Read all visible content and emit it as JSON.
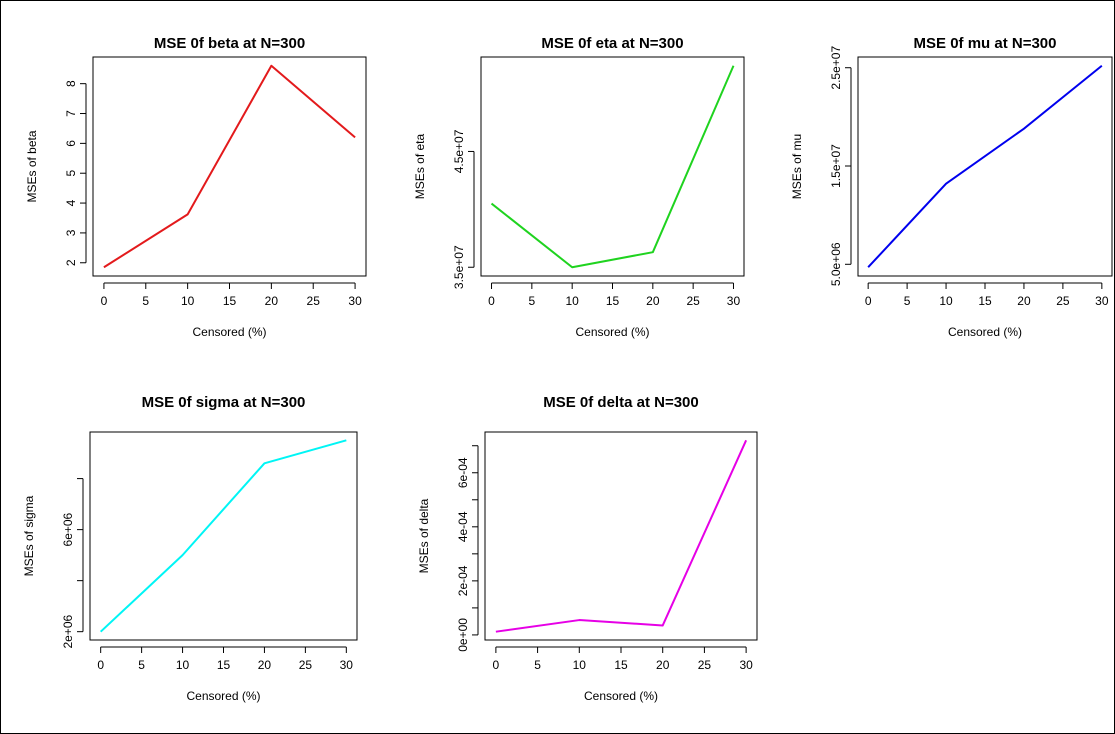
{
  "chart_data": [
    {
      "type": "line",
      "title": "MSE 0f beta at N=300",
      "xlabel": "Censored (%)",
      "ylabel": "MSEs of beta",
      "x": [
        0,
        10,
        20,
        30
      ],
      "series": [
        {
          "values": [
            1.85,
            3.62,
            8.6,
            6.2
          ],
          "color": "#e31a1c"
        }
      ],
      "xlim": [
        0,
        30
      ],
      "ylim": [
        1.85,
        8.6
      ],
      "xticks": [
        0,
        5,
        10,
        15,
        20,
        25,
        30
      ],
      "xtick_labels": [
        "0",
        "5",
        "10",
        "15",
        "20",
        "25",
        "30"
      ],
      "yticks": [
        2,
        3,
        4,
        5,
        6,
        7,
        8
      ],
      "ytick_labels": [
        "2",
        "3",
        "4",
        "5",
        "6",
        "7",
        "8"
      ],
      "grid": false
    },
    {
      "type": "line",
      "title": "MSE 0f eta at N=300",
      "xlabel": "Censored (%)",
      "ylabel": "MSEs of eta",
      "x": [
        0,
        10,
        20,
        30
      ],
      "series": [
        {
          "values": [
            40500000,
            35000000,
            36300000,
            52400000
          ],
          "color": "#1fd31f"
        }
      ],
      "xlim": [
        0,
        30
      ],
      "ylim": [
        35000000,
        52400000
      ],
      "xticks": [
        0,
        5,
        10,
        15,
        20,
        25,
        30
      ],
      "xtick_labels": [
        "0",
        "5",
        "10",
        "15",
        "20",
        "25",
        "30"
      ],
      "yticks": [
        35000000,
        45000000
      ],
      "ytick_labels": [
        "3.5e+07",
        "4.5e+07"
      ],
      "grid": false
    },
    {
      "type": "line",
      "title": "MSE 0f mu at N=300",
      "xlabel": "Censored (%)",
      "ylabel": "MSEs of mu",
      "x": [
        0,
        10,
        20,
        30
      ],
      "series": [
        {
          "values": [
            4700000,
            13200000,
            18800000,
            25200000
          ],
          "color": "#0000ee"
        }
      ],
      "xlim": [
        0,
        30
      ],
      "ylim": [
        4700000,
        25200000
      ],
      "xticks": [
        0,
        5,
        10,
        15,
        20,
        25,
        30
      ],
      "xtick_labels": [
        "0",
        "5",
        "10",
        "15",
        "20",
        "25",
        "30"
      ],
      "yticks": [
        5000000,
        15000000,
        25000000
      ],
      "ytick_labels": [
        "5.0e+06",
        "1.5e+07",
        "2.5e+07"
      ],
      "grid": false
    },
    {
      "type": "line",
      "title": "MSE 0f sigma at N=300",
      "xlabel": "Censored (%)",
      "ylabel": "MSEs of sigma",
      "x": [
        0,
        10,
        20,
        30
      ],
      "series": [
        {
          "values": [
            2000000,
            5000000,
            8600000,
            9500000
          ],
          "color": "#00f5f5"
        }
      ],
      "xlim": [
        0,
        30
      ],
      "ylim": [
        2000000,
        9500000
      ],
      "xticks": [
        0,
        5,
        10,
        15,
        20,
        25,
        30
      ],
      "xtick_labels": [
        "0",
        "5",
        "10",
        "15",
        "20",
        "25",
        "30"
      ],
      "yticks": [
        2000000,
        4000000,
        6000000,
        8000000
      ],
      "ytick_labels": [
        "2e+06",
        "",
        "6e+06",
        ""
      ],
      "grid": false
    },
    {
      "type": "line",
      "title": "MSE 0f delta at N=300",
      "xlabel": "Censored (%)",
      "ylabel": "MSEs of delta",
      "x": [
        0,
        10,
        20,
        30
      ],
      "series": [
        {
          "values": [
            1.2e-05,
            5.5e-05,
            3.5e-05,
            0.00072
          ],
          "color": "#e600e6"
        }
      ],
      "xlim": [
        0,
        30
      ],
      "ylim": [
        1.2e-05,
        0.00072
      ],
      "xticks": [
        0,
        5,
        10,
        15,
        20,
        25,
        30
      ],
      "xtick_labels": [
        "0",
        "5",
        "10",
        "15",
        "20",
        "25",
        "30"
      ],
      "yticks": [
        0,
        0.0002,
        0.0004,
        0.0006
      ],
      "ytick_labels": [
        "0e+00",
        "2e-04",
        "4e-04",
        "6e-04"
      ],
      "minor_yticks": [
        0.0001,
        0.0003,
        0.0005,
        0.0007
      ],
      "grid": false
    }
  ]
}
